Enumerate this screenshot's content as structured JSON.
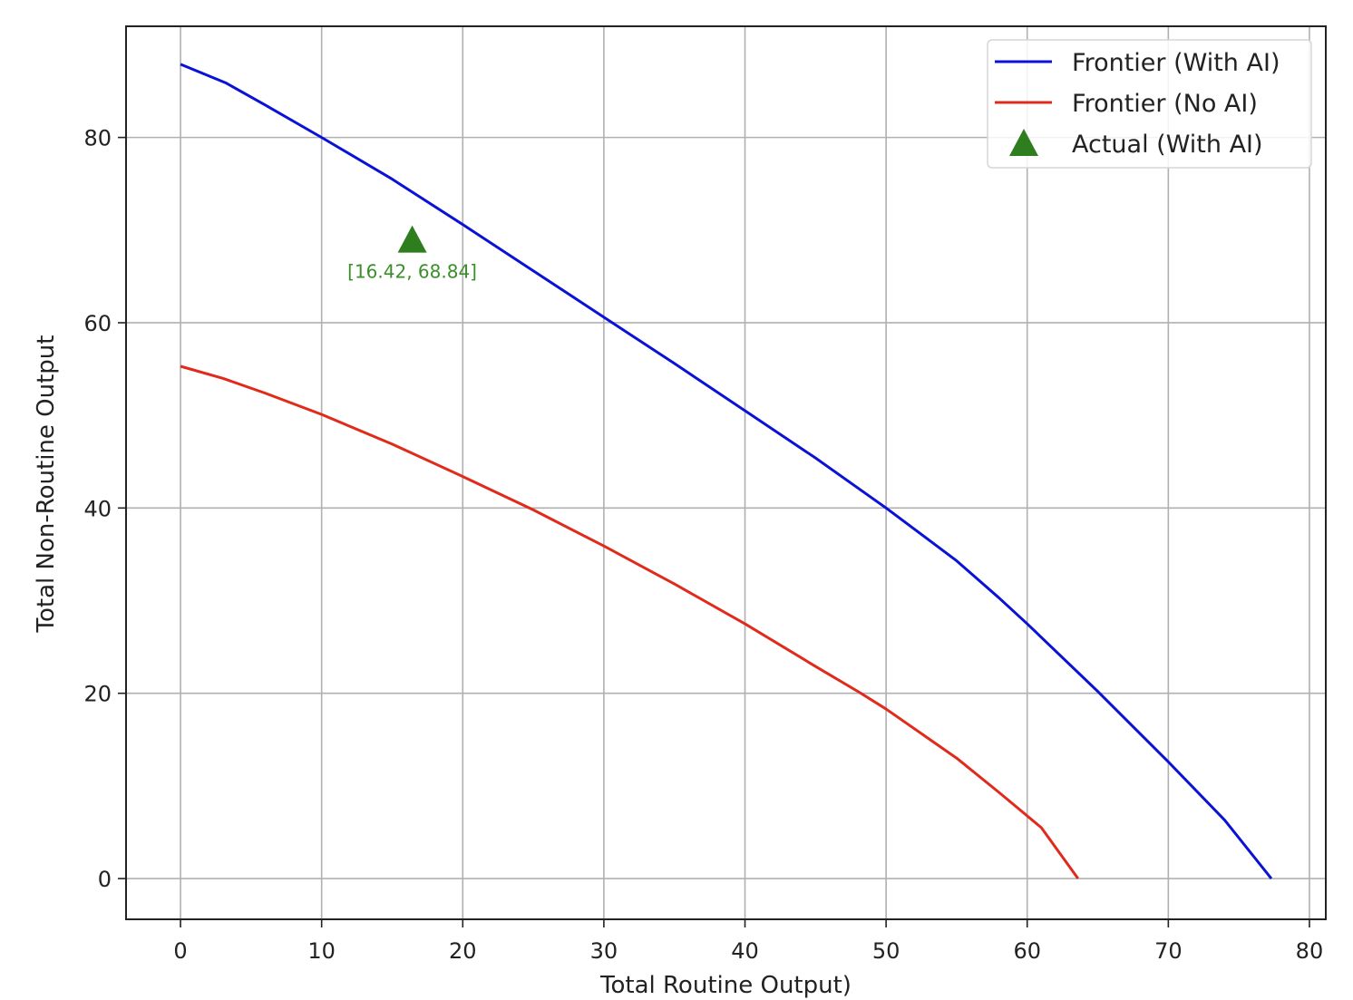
{
  "chart_data": {
    "type": "line",
    "title": "",
    "xlabel": "Total Routine Output)",
    "ylabel": "Total Non-Routine Output",
    "xlim": [
      -3.86,
      81.16
    ],
    "ylim": [
      -4.4,
      92.0
    ],
    "xticks": [
      0,
      10,
      20,
      30,
      40,
      50,
      60,
      70,
      80
    ],
    "yticks": [
      0,
      20,
      40,
      60,
      80
    ],
    "grid": true,
    "legend_position": "top-right",
    "series": [
      {
        "name": "Frontier (With AI)",
        "kind": "line",
        "color": "#0a12d6",
        "points": [
          [
            0,
            87.9
          ],
          [
            3.2,
            85.9
          ],
          [
            6,
            83.5
          ],
          [
            10,
            80
          ],
          [
            15,
            75.5
          ],
          [
            20,
            70.6
          ],
          [
            25,
            65.6
          ],
          [
            30,
            60.6
          ],
          [
            35,
            55.6
          ],
          [
            40,
            50.5
          ],
          [
            45,
            45.4
          ],
          [
            50,
            40
          ],
          [
            55,
            34.3
          ],
          [
            58,
            30.3
          ],
          [
            60,
            27.5
          ],
          [
            65,
            20.2
          ],
          [
            70,
            12.6
          ],
          [
            74,
            6.3
          ],
          [
            77.3,
            0
          ]
        ]
      },
      {
        "name": "Frontier (No AI)",
        "kind": "line",
        "color": "#e02a1c",
        "points": [
          [
            0,
            55.3
          ],
          [
            3,
            54
          ],
          [
            6,
            52.4
          ],
          [
            10,
            50.1
          ],
          [
            15,
            46.9
          ],
          [
            20,
            43.4
          ],
          [
            25,
            39.8
          ],
          [
            30,
            35.9
          ],
          [
            35,
            31.8
          ],
          [
            40,
            27.5
          ],
          [
            45,
            22.9
          ],
          [
            48,
            20.2
          ],
          [
            50,
            18.3
          ],
          [
            55,
            13
          ],
          [
            58,
            9.3
          ],
          [
            61,
            5.5
          ],
          [
            63.6,
            0
          ]
        ]
      },
      {
        "name": "Actual (With AI)",
        "kind": "marker",
        "marker": "triangle",
        "color": "#2e7d1f",
        "points": [
          [
            16.42,
            68.84
          ]
        ]
      }
    ],
    "annotations": [
      {
        "text": "[16.42, 68.84]",
        "x": 16.42,
        "y": 68.84,
        "color": "#3a8f2a"
      }
    ]
  }
}
